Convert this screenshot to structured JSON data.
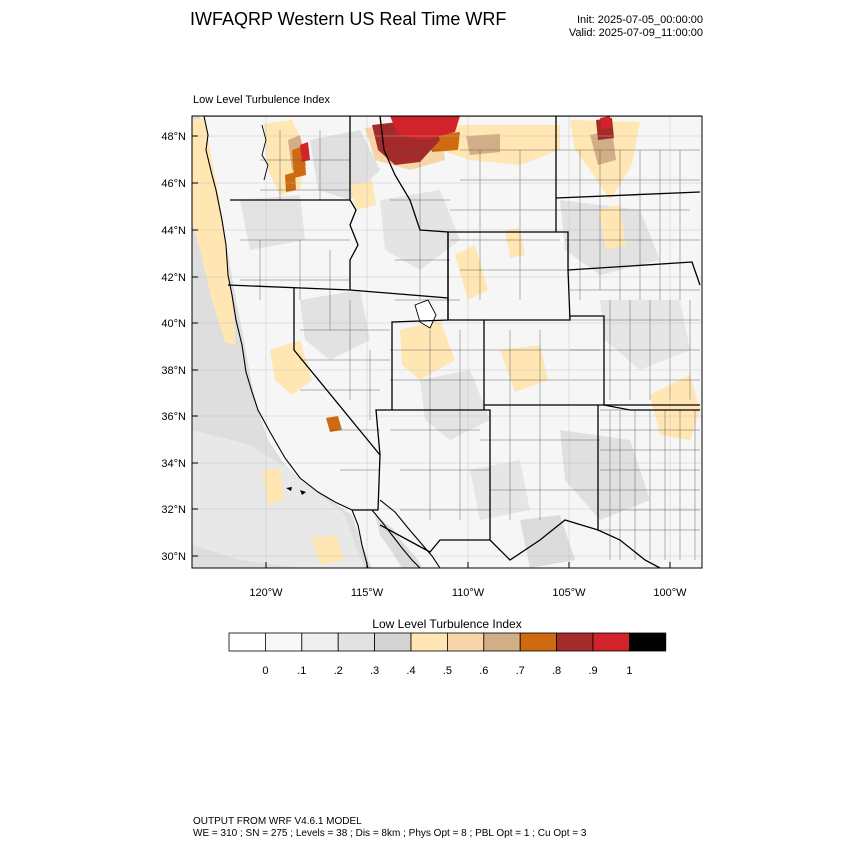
{
  "header": {
    "title": "IWFAQRP Western US Real Time WRF",
    "init": "Init: 2025-07-05_00:00:00",
    "valid": "Valid: 2025-07-09_11:00:00"
  },
  "plot": {
    "label": "Low Level Turbulence Index",
    "lat_labels": [
      "48°N",
      "46°N",
      "44°N",
      "42°N",
      "40°N",
      "38°N",
      "36°N",
      "34°N",
      "32°N",
      "30°N"
    ],
    "lon_labels": [
      "120°W",
      "115°W",
      "110°W",
      "105°W",
      "100°W"
    ]
  },
  "colorbar": {
    "title": "Low Level Turbulence Index",
    "colors": [
      "#ffffff",
      "#f8f8f8",
      "#eeeeee",
      "#e2e2e2",
      "#d4d4d4",
      "#ffe6b3",
      "#f6d6a8",
      "#d2ae86",
      "#d06a10",
      "#a52b2b",
      "#d2232a",
      "#000000"
    ],
    "labels": [
      "0",
      ".1",
      ".2",
      ".3",
      ".4",
      ".5",
      ".6",
      ".7",
      ".8",
      ".9",
      "1"
    ]
  },
  "footer": {
    "line1": "OUTPUT FROM WRF V4.6.1 MODEL",
    "line2": "WE = 310 ; SN = 275 ; Levels = 38 ; Dis = 8km ; Phys Opt = 8 ; PBL Opt = 1 ; Cu Opt = 3"
  }
}
